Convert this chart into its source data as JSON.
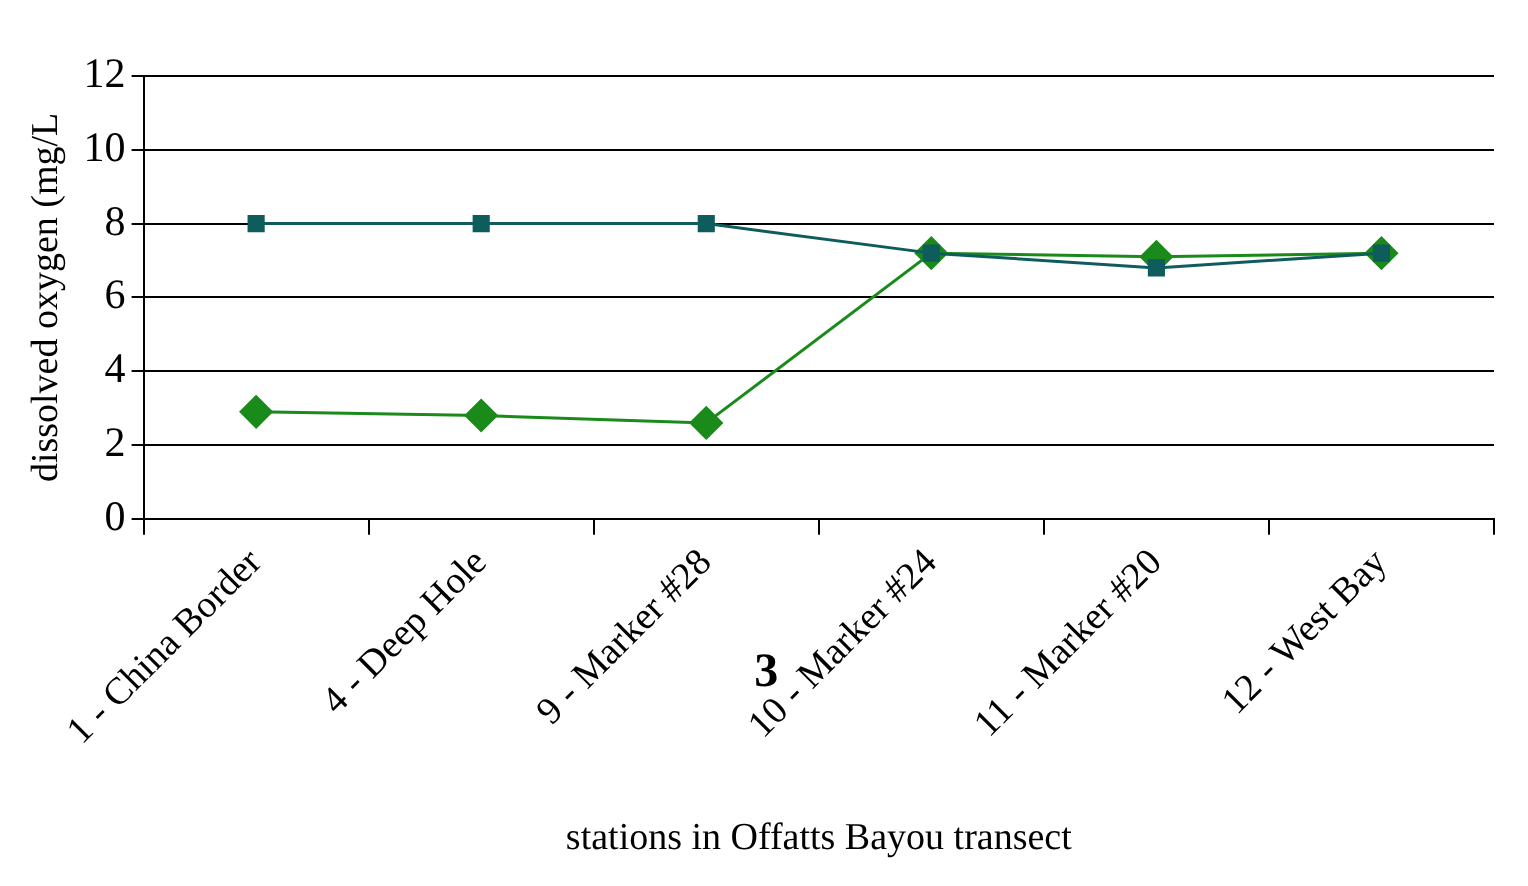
{
  "chart_data": {
    "type": "line",
    "xlabel": "stations in Offatts Bayou transect",
    "ylabel": "dissolved oxygen (mg/L",
    "categories": [
      "1 - China Border",
      "4 - Deep Hole",
      "9 - Marker #28",
      "10 - Marker #24",
      "11 - Marker #20",
      "12 - West Bay"
    ],
    "series": [
      {
        "color": "#0f5c5c",
        "marker": "square",
        "values": [
          8,
          8,
          8,
          7.2,
          6.8,
          7.2
        ]
      },
      {
        "color": "#1a8a1a",
        "marker": "diamond",
        "values": [
          2.9,
          2.8,
          2.6,
          7.2,
          7.1,
          7.2
        ]
      }
    ],
    "ylim": [
      0,
      12
    ],
    "yticks": [
      0,
      2,
      4,
      6,
      8,
      10,
      12
    ],
    "grid": "y",
    "legend": false,
    "annotations": [
      "3"
    ]
  }
}
